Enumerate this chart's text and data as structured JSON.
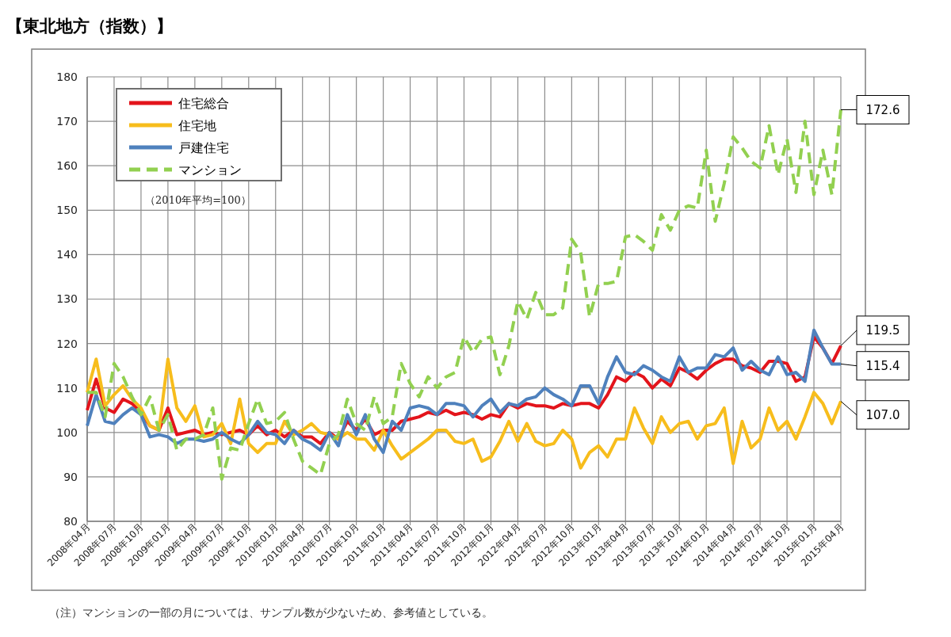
{
  "chart_data": {
    "type": "line",
    "title": "【東北地方（指数）】",
    "categories": [
      "2008年04月",
      null,
      null,
      "2008年07月",
      null,
      null,
      "2008年10月",
      null,
      null,
      "2009年01月",
      null,
      null,
      "2009年04月",
      null,
      null,
      "2009年07月",
      null,
      null,
      "2009年10月",
      null,
      null,
      "2010年01月",
      null,
      null,
      "2010年04月",
      null,
      null,
      "2010年07月",
      null,
      null,
      "2010年10月",
      null,
      null,
      "2011年01月",
      null,
      null,
      "2011年04月",
      null,
      null,
      "2011年07月",
      null,
      null,
      "2011年10月",
      null,
      null,
      "2012年01月",
      null,
      null,
      "2012年04月",
      null,
      null,
      "2012年07月",
      null,
      null,
      "2012年10月",
      null,
      null,
      "2013年01月",
      null,
      null,
      "2013年04月",
      null,
      null,
      "2013年07月",
      null,
      null,
      "2013年10月",
      null,
      null,
      "2014年01月",
      null,
      null,
      "2014年04月",
      null,
      null,
      "2014年07月",
      null,
      null,
      "2014年10月",
      null,
      null,
      "2015年01月",
      null,
      null,
      "2015年04月"
    ],
    "series": [
      {
        "name": "住宅総合",
        "color": "#e3141b",
        "line_style": "solid",
        "values": [
          105,
          112,
          105.5,
          104.5,
          107.5,
          106.5,
          104.5,
          101.5,
          100.5,
          105.5,
          99.5,
          100,
          100.5,
          99.5,
          100,
          99.5,
          100,
          100.5,
          99.5,
          101.5,
          99.5,
          100.5,
          99,
          100.5,
          99,
          99,
          97.5,
          100,
          98.5,
          102.5,
          100.5,
          103,
          99.5,
          100.5,
          100.5,
          102.5,
          103,
          103.5,
          104.5,
          104,
          105,
          104,
          104.5,
          104,
          103,
          104,
          103.5,
          106.5,
          105.5,
          106.5,
          106,
          106,
          105.5,
          106.5,
          106,
          106.5,
          106.5,
          105.5,
          108.5,
          112.5,
          111.5,
          113.5,
          112.5,
          110,
          112,
          110.5,
          114.5,
          113.5,
          112,
          114,
          115.5,
          116.5,
          116.5,
          115,
          114.5,
          113.5,
          116,
          116,
          115.5,
          111.5,
          112.5,
          121.5,
          119,
          115.5,
          119.5
        ]
      },
      {
        "name": "住宅地",
        "color": "#f7bd1c",
        "line_style": "solid",
        "values": [
          109,
          116.5,
          106,
          108.5,
          110.5,
          107.5,
          105.5,
          101.5,
          100.5,
          116.5,
          105.5,
          102.5,
          106,
          99,
          99.5,
          102,
          97.5,
          107.5,
          97.5,
          95.5,
          97.5,
          97.5,
          102.5,
          99.5,
          100.5,
          102,
          100,
          99.5,
          98.5,
          100,
          98.5,
          98.5,
          96,
          100.5,
          97,
          94,
          95.5,
          97,
          98.5,
          100.5,
          100.5,
          98,
          97.5,
          98.5,
          93.5,
          94.5,
          98,
          102.5,
          98,
          102,
          98,
          97,
          97.5,
          100.5,
          98.5,
          92,
          95.5,
          97,
          94.5,
          98.5,
          98.5,
          105.5,
          101,
          97.5,
          103.5,
          100,
          102,
          102.5,
          98.5,
          101.5,
          102,
          105.5,
          93,
          102.5,
          96.5,
          98.5,
          105.5,
          100.5,
          102.5,
          98.5,
          103.5,
          109,
          106.5,
          102,
          107
        ]
      },
      {
        "name": "戸建住宅",
        "color": "#4f81bd",
        "line_style": "solid",
        "values": [
          101.5,
          108.5,
          102.5,
          102,
          104,
          105.5,
          104,
          99,
          99.5,
          99,
          97.5,
          98.5,
          98.5,
          98,
          98.5,
          100,
          98.5,
          97.5,
          99.5,
          102.5,
          100,
          99.5,
          97.5,
          100.5,
          98.5,
          97.5,
          96,
          100,
          97,
          104,
          99.5,
          104,
          98.5,
          95.5,
          102.5,
          100.5,
          105.5,
          106,
          105.5,
          104,
          106.5,
          106.5,
          106,
          103.5,
          106,
          107.5,
          104.5,
          106.5,
          106,
          107.5,
          108,
          110,
          108.5,
          107.5,
          106,
          110.5,
          110.5,
          106.5,
          112.5,
          117,
          113.5,
          113,
          115,
          114,
          112.5,
          111.5,
          117,
          113.5,
          114.5,
          114.5,
          117.5,
          117,
          119,
          114,
          116,
          114,
          113,
          117,
          113,
          113.5,
          111.5,
          123,
          119,
          115.4,
          115.4
        ]
      },
      {
        "name": "マンション",
        "color": "#92d050",
        "line_style": "dashed",
        "values": [
          109,
          109,
          103.5,
          115.5,
          112.5,
          108,
          104,
          108,
          100.5,
          104,
          96,
          98.5,
          98.5,
          99.5,
          105.5,
          89.5,
          96.5,
          96,
          102,
          107.5,
          102,
          102.5,
          104.5,
          98.5,
          93.5,
          92,
          90.5,
          97.5,
          99.5,
          107.5,
          102,
          100.5,
          108,
          102,
          103.5,
          115.5,
          111,
          108,
          112.5,
          110,
          112.5,
          113.5,
          121.5,
          118,
          121,
          121.5,
          113,
          119.5,
          129.5,
          125.5,
          131.5,
          126.5,
          126.5,
          128,
          143.5,
          140.5,
          126,
          133.5,
          133.5,
          134,
          144,
          144.5,
          143,
          141,
          149,
          145.5,
          150,
          151,
          150.5,
          163.5,
          147.5,
          156,
          166.5,
          164,
          161,
          159.5,
          169,
          158,
          166,
          154,
          170,
          153.5,
          163.5,
          153.5,
          172.6
        ]
      }
    ],
    "ylim": [
      80,
      180
    ],
    "yticks": [
      80,
      90,
      100,
      110,
      120,
      130,
      140,
      150,
      160,
      170,
      180
    ],
    "grid": true,
    "legend": "top left",
    "annotations": [
      "（2010年平均=100）",
      "（注）マンションの一部の月については、サンプル数が少ないため、参考値としている。",
      {
        "text": "172.6",
        "x": "2015年04月",
        "y": 172.6
      },
      {
        "text": "119.5",
        "x": "2015年04月",
        "y": 119.5
      },
      {
        "text": "115.4",
        "x": "2015年04月",
        "y": 115.4
      },
      {
        "text": "107.0",
        "x": "2015年04月",
        "y": 107
      }
    ]
  }
}
